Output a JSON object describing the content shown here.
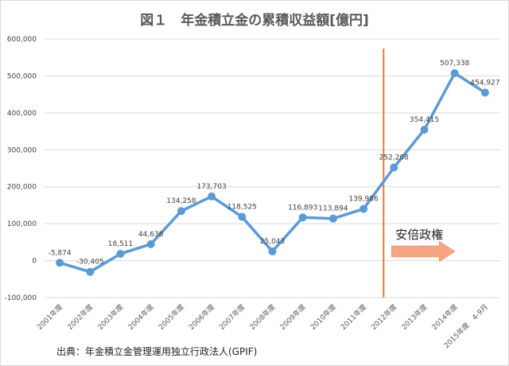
{
  "chart_data": {
    "type": "line",
    "title": "図１　年金積立金の累積収益額[億円]",
    "categories": [
      "2001年度",
      "2002年度",
      "2003年度",
      "2004年度",
      "2005年度",
      "2006年度",
      "2007年度",
      "2008年度",
      "2009年度",
      "2010年度",
      "2011年度",
      "2012年度",
      "2013年度",
      "2014年度",
      "2015年度　4-9月"
    ],
    "series": [
      {
        "name": "累積収益額",
        "values": [
          -5874,
          -30405,
          18511,
          44638,
          134258,
          173703,
          118525,
          25043,
          116893,
          113894,
          139986,
          252208,
          354415,
          507338,
          454927
        ],
        "labels": [
          "-5,874",
          "-30,405",
          "18,511",
          "44,638",
          "134,258",
          "173,703",
          "118,525",
          "25,043",
          "116,893",
          "113,894",
          "139,986",
          "252,208",
          "354,415",
          "507,338",
          "454,927"
        ]
      }
    ],
    "ylim": [
      -100000,
      600000
    ],
    "yticks": [
      -100000,
      0,
      100000,
      200000,
      300000,
      400000,
      500000,
      600000
    ],
    "ytick_labels": [
      "-100,000",
      "0",
      "100,000",
      "200,000",
      "300,000",
      "400,000",
      "500,000",
      "600,000"
    ],
    "grid": true,
    "annotation": {
      "text": "安倍政権",
      "start_category": "2012年度",
      "line_color": "#e07b39",
      "arrow_color": "#f4a582"
    },
    "line_color": "#5b9bd5",
    "source": "出典：年金積立金管理運用独立行政法人(GPIF)"
  }
}
